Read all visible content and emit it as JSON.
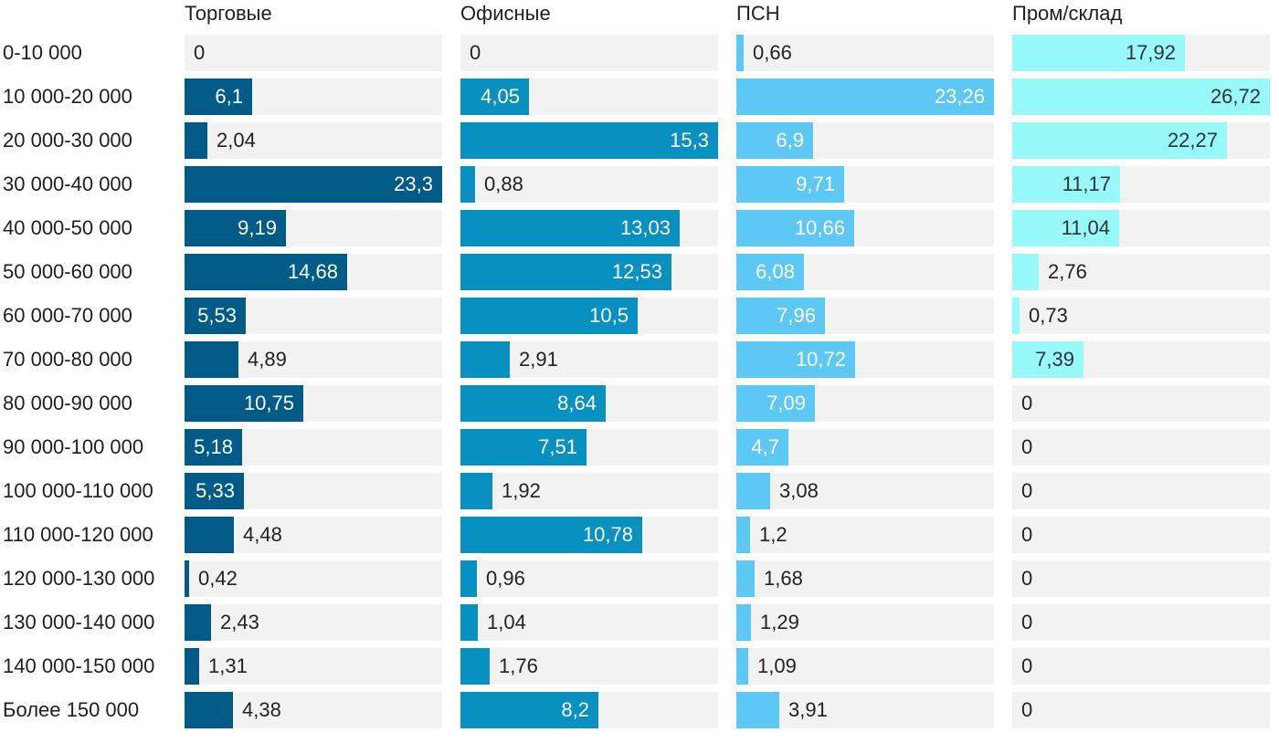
{
  "chart_data": {
    "type": "bar",
    "orientation": "horizontal",
    "layout": "small-multiples",
    "categories": [
      "0-10 000",
      "10 000-20 000",
      "20 000-30 000",
      "30 000-40 000",
      "40 000-50 000",
      "50 000-60 000",
      "60 000-70 000",
      "70 000-80 000",
      "80 000-90 000",
      "90 000-100 000",
      "100 000-110 000",
      "110 000-120 000",
      "120 000-130 000",
      "130 000-140 000",
      "140 000-150 000",
      "Более 150 000"
    ],
    "series": [
      {
        "name": "Торговые",
        "color": "#005b86",
        "max": 23.3,
        "values": [
          0,
          6.1,
          2.04,
          23.3,
          9.19,
          14.68,
          5.53,
          4.89,
          10.75,
          5.18,
          5.33,
          4.48,
          0.42,
          2.43,
          1.31,
          4.38
        ],
        "labels": [
          "0",
          "6,1",
          "2,04",
          "23,3",
          "9,19",
          "14,68",
          "5,53",
          "4,89",
          "10,75",
          "5,18",
          "5,33",
          "4,48",
          "0,42",
          "2,43",
          "1,31",
          "4,38"
        ]
      },
      {
        "name": "Офисные",
        "color": "#0891c0",
        "max": 15.3,
        "values": [
          0,
          4.05,
          15.3,
          0.88,
          13.03,
          12.53,
          10.5,
          2.91,
          8.64,
          7.51,
          1.92,
          10.78,
          0.96,
          1.04,
          1.76,
          8.2
        ],
        "labels": [
          "0",
          "4,05",
          "15,3",
          "0,88",
          "13,03",
          "12,53",
          "10,5",
          "2,91",
          "8,64",
          "7,51",
          "1,92",
          "10,78",
          "0,96",
          "1,04",
          "1,76",
          "8,2"
        ]
      },
      {
        "name": "ПСН",
        "color": "#5ec8f5",
        "max": 23.26,
        "values": [
          0.66,
          23.26,
          6.9,
          9.71,
          10.66,
          6.08,
          7.96,
          10.72,
          7.09,
          4.7,
          3.08,
          1.2,
          1.68,
          1.29,
          1.09,
          3.91
        ],
        "labels": [
          "0,66",
          "23,26",
          "6,9",
          "9,71",
          "10,66",
          "6,08",
          "7,96",
          "10,72",
          "7,09",
          "4,7",
          "3,08",
          "1,2",
          "1,68",
          "1,29",
          "1,09",
          "3,91"
        ]
      },
      {
        "name": "Пром/склад",
        "color": "#98f9fb",
        "max": 26.72,
        "values": [
          17.92,
          26.72,
          22.27,
          11.17,
          11.04,
          2.76,
          0.73,
          7.39,
          0,
          0,
          0,
          0,
          0,
          0,
          0,
          0
        ],
        "labels": [
          "17,92",
          "26,72",
          "22,27",
          "11,17",
          "11,04",
          "2,76",
          "0,73",
          "7,39",
          "0",
          "0",
          "0",
          "0",
          "0",
          "0",
          "0",
          "0"
        ]
      }
    ],
    "grid": false,
    "legend": "none"
  }
}
